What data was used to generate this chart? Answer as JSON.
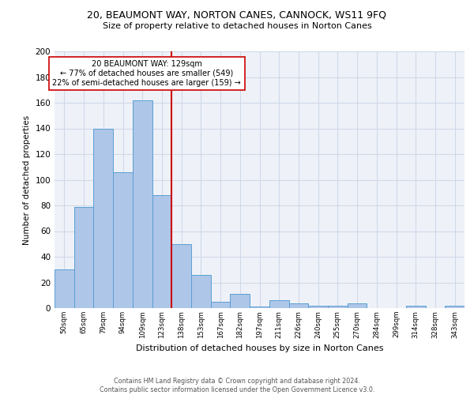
{
  "title1": "20, BEAUMONT WAY, NORTON CANES, CANNOCK, WS11 9FQ",
  "title2": "Size of property relative to detached houses in Norton Canes",
  "xlabel": "Distribution of detached houses by size in Norton Canes",
  "ylabel": "Number of detached properties",
  "bar_labels": [
    "50sqm",
    "65sqm",
    "79sqm",
    "94sqm",
    "109sqm",
    "123sqm",
    "138sqm",
    "153sqm",
    "167sqm",
    "182sqm",
    "197sqm",
    "211sqm",
    "226sqm",
    "240sqm",
    "255sqm",
    "270sqm",
    "284sqm",
    "299sqm",
    "314sqm",
    "328sqm",
    "343sqm"
  ],
  "bar_values": [
    30,
    79,
    140,
    106,
    162,
    88,
    50,
    26,
    5,
    11,
    1,
    6,
    4,
    2,
    2,
    4,
    0,
    0,
    2,
    0,
    2
  ],
  "bar_color": "#aec6e8",
  "bar_edge_color": "#5a9fd4",
  "vline_x": 5.5,
  "vline_color": "#cc0000",
  "annotation_text": "20 BEAUMONT WAY: 129sqm\n← 77% of detached houses are smaller (549)\n22% of semi-detached houses are larger (159) →",
  "annotation_box_color": "#ffffff",
  "annotation_box_edge": "#cc0000",
  "ylim": [
    0,
    200
  ],
  "yticks": [
    0,
    20,
    40,
    60,
    80,
    100,
    120,
    140,
    160,
    180,
    200
  ],
  "grid_color": "#d0d8e8",
  "background_color": "#eef2f8",
  "footer_line1": "Contains HM Land Registry data © Crown copyright and database right 2024.",
  "footer_line2": "Contains public sector information licensed under the Open Government Licence v3.0."
}
